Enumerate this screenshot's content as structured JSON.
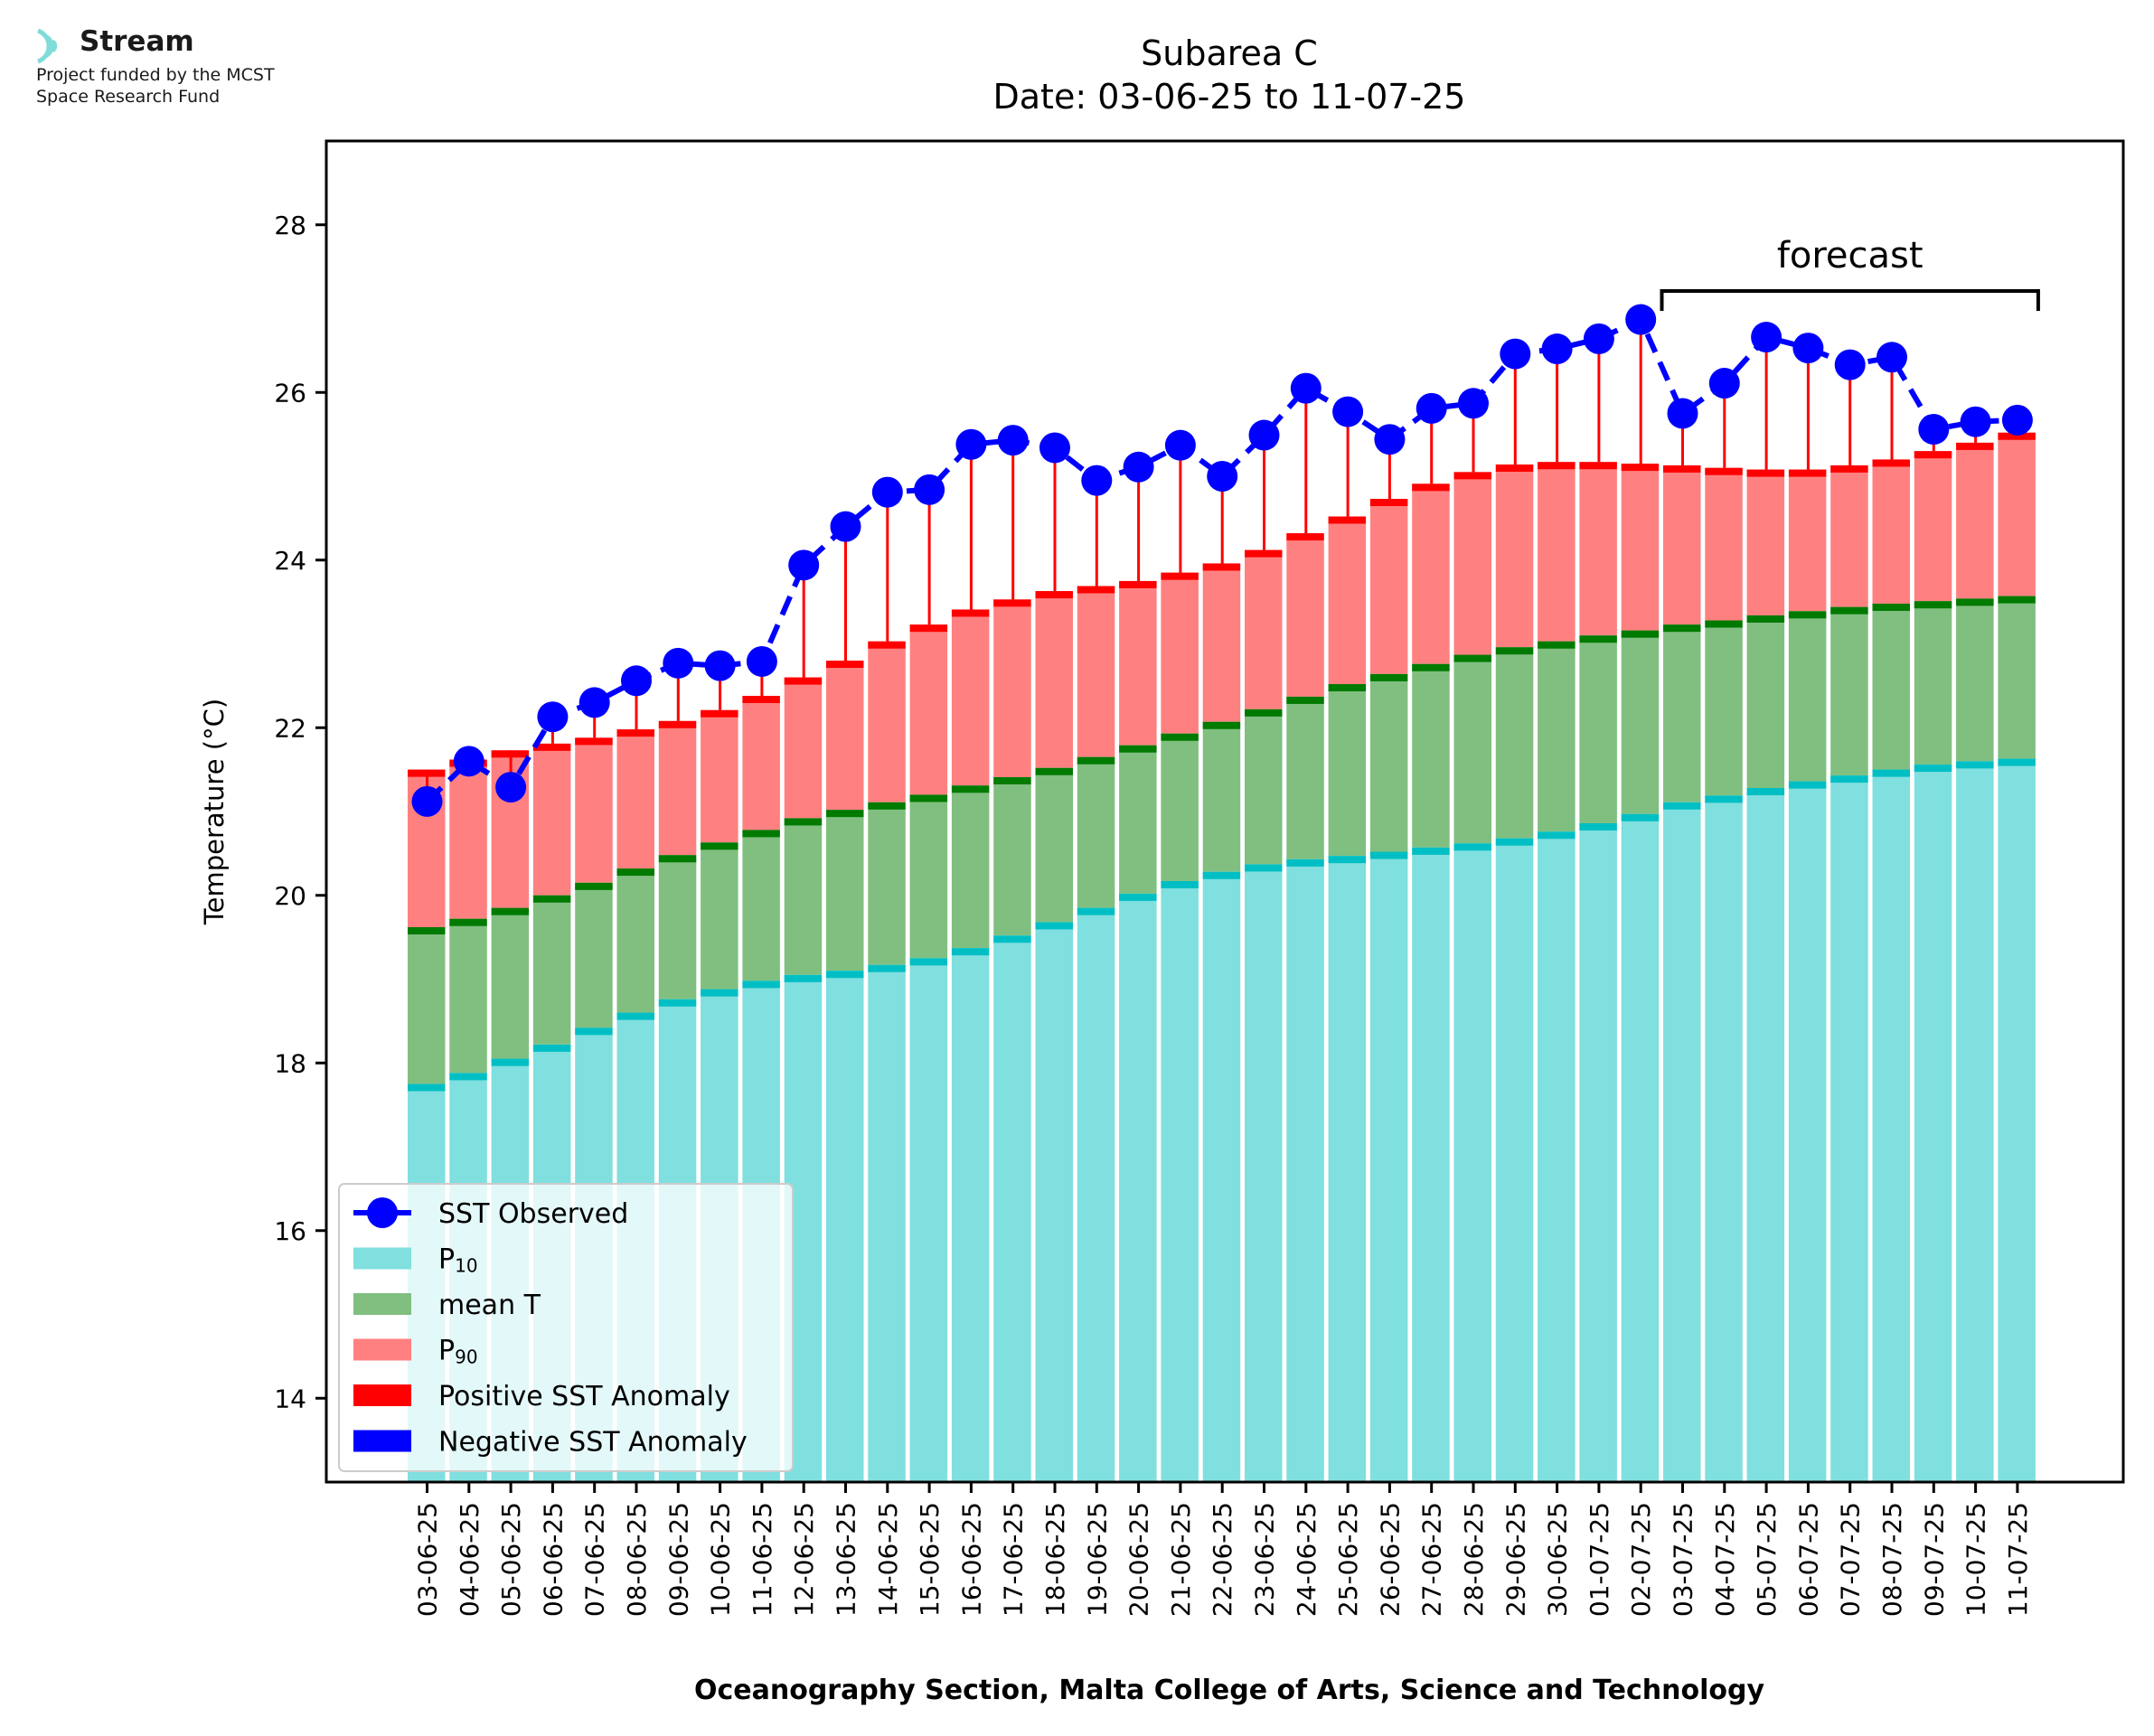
{
  "logo": {
    "name": "Stream",
    "line1": "Project funded by the MCST",
    "line2": "Space Research Fund",
    "color": "#7fdcd9"
  },
  "chart_data": {
    "type": "bar",
    "title": "Subarea C",
    "subtitle": "Date: 03-06-25 to 11-07-25",
    "xlabel": "Oceanography Section, Malta College of Arts, Science and Technology",
    "ylabel": "Temperature (°C)",
    "ylim": [
      13,
      29
    ],
    "yticks": [
      14,
      16,
      18,
      20,
      22,
      24,
      26,
      28
    ],
    "annotation": "forecast",
    "forecast_range": [
      "03-07-25",
      "11-07-25"
    ],
    "legend_position": "lower-left",
    "grid": false,
    "categories": [
      "03-06-25",
      "04-06-25",
      "05-06-25",
      "06-06-25",
      "07-06-25",
      "08-06-25",
      "09-06-25",
      "10-06-25",
      "11-06-25",
      "12-06-25",
      "13-06-25",
      "14-06-25",
      "15-06-25",
      "16-06-25",
      "17-06-25",
      "18-06-25",
      "19-06-25",
      "20-06-25",
      "21-06-25",
      "22-06-25",
      "23-06-25",
      "24-06-25",
      "25-06-25",
      "26-06-25",
      "27-06-25",
      "28-06-25",
      "29-06-25",
      "30-06-25",
      "01-07-25",
      "02-07-25",
      "03-07-25",
      "04-07-25",
      "05-07-25",
      "06-07-25",
      "07-07-25",
      "08-07-25",
      "09-07-25",
      "10-07-25",
      "11-07-25"
    ],
    "series": [
      {
        "name": "P10",
        "color": "#80dfdf",
        "edge": "#00bfc4",
        "values": [
          17.75,
          17.88,
          18.05,
          18.22,
          18.42,
          18.6,
          18.76,
          18.88,
          18.98,
          19.05,
          19.1,
          19.17,
          19.25,
          19.37,
          19.52,
          19.68,
          19.85,
          20.02,
          20.17,
          20.28,
          20.37,
          20.43,
          20.47,
          20.52,
          20.57,
          20.62,
          20.68,
          20.76,
          20.86,
          20.97,
          21.11,
          21.19,
          21.28,
          21.36,
          21.43,
          21.5,
          21.56,
          21.6,
          21.63
        ]
      },
      {
        "name": "mean T",
        "color": "#80bf80",
        "edge": "#007a00",
        "values": [
          19.62,
          19.72,
          19.85,
          20.0,
          20.15,
          20.32,
          20.48,
          20.63,
          20.78,
          20.92,
          21.02,
          21.11,
          21.2,
          21.31,
          21.41,
          21.52,
          21.65,
          21.79,
          21.93,
          22.07,
          22.22,
          22.37,
          22.52,
          22.64,
          22.76,
          22.87,
          22.96,
          23.03,
          23.1,
          23.16,
          23.23,
          23.28,
          23.34,
          23.39,
          23.44,
          23.48,
          23.51,
          23.54,
          23.57
        ]
      },
      {
        "name": "P90",
        "color": "#ff8080",
        "edge": "#ff0000",
        "values": [
          21.5,
          21.62,
          21.73,
          21.81,
          21.88,
          21.98,
          22.08,
          22.21,
          22.38,
          22.6,
          22.8,
          23.03,
          23.23,
          23.41,
          23.53,
          23.63,
          23.69,
          23.75,
          23.85,
          23.96,
          24.12,
          24.32,
          24.52,
          24.73,
          24.91,
          25.05,
          25.14,
          25.17,
          25.17,
          25.15,
          25.13,
          25.1,
          25.08,
          25.08,
          25.13,
          25.2,
          25.3,
          25.4,
          25.52
        ]
      },
      {
        "name": "SST Observed",
        "color": "#0000ff",
        "values": [
          21.12,
          21.6,
          21.29,
          22.13,
          22.3,
          22.56,
          22.77,
          22.74,
          22.79,
          23.94,
          24.4,
          24.81,
          24.84,
          25.38,
          25.43,
          25.34,
          24.95,
          25.11,
          25.37,
          25.0,
          25.49,
          26.05,
          25.77,
          25.44,
          25.81,
          25.87,
          26.46,
          26.52,
          26.64,
          26.87,
          25.75,
          26.11,
          26.66,
          26.53,
          26.33,
          26.42,
          25.56,
          25.65,
          25.67
        ]
      }
    ],
    "legend": [
      {
        "label": "SST Observed",
        "kind": "line",
        "color": "#0000ff"
      },
      {
        "label": "P",
        "sub": "10",
        "kind": "patch",
        "color": "#80dfdf"
      },
      {
        "label": "mean T",
        "kind": "patch",
        "color": "#80bf80"
      },
      {
        "label": "P",
        "sub": "90",
        "kind": "patch",
        "color": "#ff8080"
      },
      {
        "label": "Positive SST Anomaly",
        "kind": "patch",
        "color": "#ff0000"
      },
      {
        "label": "Negative SST Anomaly",
        "kind": "patch",
        "color": "#0000ff"
      }
    ]
  }
}
